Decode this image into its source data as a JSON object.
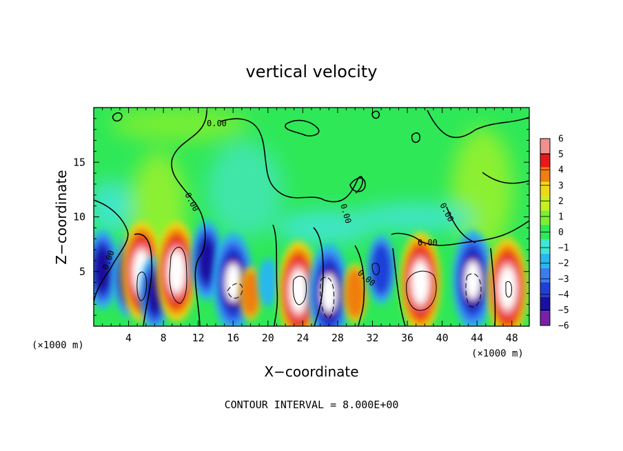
{
  "chart_data": {
    "type": "heatmap",
    "title": "vertical velocity",
    "xlabel": "X−coordinate",
    "ylabel": "Z−coordinate",
    "x_unit_left": "(×1000 m)",
    "x_unit_right": "(×1000 m)",
    "footer": "CONTOUR INTERVAL = 8.000E+00",
    "xlim": [
      0,
      50
    ],
    "ylim": [
      0,
      20
    ],
    "x_ticks": [
      4,
      8,
      12,
      16,
      20,
      24,
      28,
      32,
      36,
      40,
      44,
      48
    ],
    "y_ticks": [
      5,
      10,
      15
    ],
    "contour_label": "0.00",
    "colorbar": {
      "min": -6,
      "max": 6,
      "tick_labels": [
        "6",
        "5",
        "4",
        "3",
        "2",
        "1",
        "0",
        "−1",
        "−2",
        "−3",
        "−4",
        "−5",
        "−6"
      ],
      "colors": [
        "#7a1fa8",
        "#1a0fa0",
        "#1f3fd8",
        "#3c7cf0",
        "#28b8ee",
        "#3fe6d2",
        "#2ee858",
        "#7cf030",
        "#c6f020",
        "#f0d818",
        "#f07e10",
        "#e81818",
        "#f09090"
      ]
    },
    "cells": [
      {
        "x": 1,
        "z": 5.2,
        "w": -4.5
      },
      {
        "x": 4,
        "z": 4.5,
        "w": -4.5
      },
      {
        "x": 5.5,
        "z": 5.0,
        "w": 6.5
      },
      {
        "x": 7,
        "z": 3.0,
        "w": -4.0
      },
      {
        "x": 9.5,
        "z": 5.0,
        "w": 6.5
      },
      {
        "x": 13,
        "z": 6.0,
        "w": -4.5
      },
      {
        "x": 16,
        "z": 4.0,
        "w": -6.5
      },
      {
        "x": 18,
        "z": 3.0,
        "w": 2.0
      },
      {
        "x": 20,
        "z": 4.0,
        "w": -1.5
      },
      {
        "x": 23.5,
        "z": 3.2,
        "w": 6.5
      },
      {
        "x": 27,
        "z": 3.0,
        "w": -6.5
      },
      {
        "x": 30,
        "z": 3.0,
        "w": 2.5
      },
      {
        "x": 33,
        "z": 5.2,
        "w": -3.5
      },
      {
        "x": 37.5,
        "z": 4.0,
        "w": 6.5
      },
      {
        "x": 43.5,
        "z": 4.2,
        "w": -6.5
      },
      {
        "x": 47.5,
        "z": 3.5,
        "w": 6.5
      }
    ]
  }
}
